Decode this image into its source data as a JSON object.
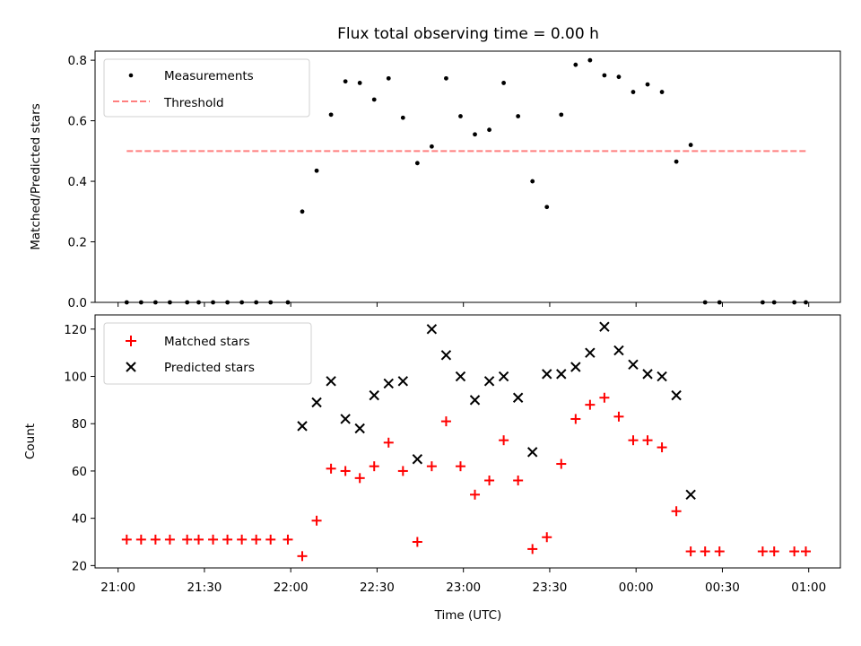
{
  "chart_data": [
    {
      "type": "scatter",
      "title": "Flux total observing time = 0.00 h",
      "ylabel": "Matched/Predicted stars",
      "xlim": [
        "20:52",
        "01:11"
      ],
      "ylim": [
        0,
        0.83
      ],
      "yticks": [
        "0.0",
        "0.2",
        "0.4",
        "0.6",
        "0.8"
      ],
      "legend_position": "upper-left",
      "grid": false,
      "series": [
        {
          "name": "Measurements",
          "color": "#000000",
          "marker": "dot",
          "points": [
            [
              "21:03",
              0.0
            ],
            [
              "21:08",
              0.0
            ],
            [
              "21:13",
              0.0
            ],
            [
              "21:18",
              0.0
            ],
            [
              "21:24",
              0.0
            ],
            [
              "21:28",
              0.0
            ],
            [
              "21:33",
              0.0
            ],
            [
              "21:38",
              0.0
            ],
            [
              "21:43",
              0.0
            ],
            [
              "21:48",
              0.0
            ],
            [
              "21:53",
              0.0
            ],
            [
              "21:59",
              0.0
            ],
            [
              "22:04",
              0.3
            ],
            [
              "22:09",
              0.435
            ],
            [
              "22:14",
              0.62
            ],
            [
              "22:19",
              0.73
            ],
            [
              "22:24",
              0.725
            ],
            [
              "22:29",
              0.67
            ],
            [
              "22:34",
              0.74
            ],
            [
              "22:39",
              0.61
            ],
            [
              "22:44",
              0.46
            ],
            [
              "22:49",
              0.515
            ],
            [
              "22:54",
              0.74
            ],
            [
              "22:59",
              0.615
            ],
            [
              "23:04",
              0.555
            ],
            [
              "23:09",
              0.57
            ],
            [
              "23:14",
              0.725
            ],
            [
              "23:19",
              0.615
            ],
            [
              "23:24",
              0.4
            ],
            [
              "23:29",
              0.315
            ],
            [
              "23:34",
              0.62
            ],
            [
              "23:39",
              0.785
            ],
            [
              "23:44",
              0.8
            ],
            [
              "23:49",
              0.75
            ],
            [
              "23:54",
              0.745
            ],
            [
              "23:59",
              0.695
            ],
            [
              "00:04",
              0.72
            ],
            [
              "00:09",
              0.695
            ],
            [
              "00:14",
              0.465
            ],
            [
              "00:19",
              0.52
            ],
            [
              "00:24",
              0.0
            ],
            [
              "00:29",
              0.0
            ],
            [
              "00:44",
              0.0
            ],
            [
              "00:48",
              0.0
            ],
            [
              "00:55",
              0.0
            ],
            [
              "00:59",
              0.0
            ]
          ]
        },
        {
          "name": "Threshold",
          "color": "#ff7f7f",
          "style": "dashed",
          "points": [
            [
              "21:03",
              0.5
            ],
            [
              "00:59",
              0.5
            ]
          ]
        }
      ]
    },
    {
      "type": "scatter",
      "xlabel": "Time (UTC)",
      "ylabel": "Count",
      "xlim": [
        "20:52",
        "01:11"
      ],
      "ylim": [
        19,
        126
      ],
      "yticks": [
        "20",
        "40",
        "60",
        "80",
        "100",
        "120"
      ],
      "xticks": [
        "21:00",
        "21:30",
        "22:00",
        "22:30",
        "23:00",
        "23:30",
        "00:00",
        "00:30",
        "01:00"
      ],
      "legend_position": "upper-left",
      "grid": false,
      "series": [
        {
          "name": "Matched stars",
          "color": "#ff0000",
          "marker": "plus",
          "points": [
            [
              "21:03",
              31
            ],
            [
              "21:08",
              31
            ],
            [
              "21:13",
              31
            ],
            [
              "21:18",
              31
            ],
            [
              "21:24",
              31
            ],
            [
              "21:28",
              31
            ],
            [
              "21:33",
              31
            ],
            [
              "21:38",
              31
            ],
            [
              "21:43",
              31
            ],
            [
              "21:48",
              31
            ],
            [
              "21:53",
              31
            ],
            [
              "21:59",
              31
            ],
            [
              "22:04",
              24
            ],
            [
              "22:09",
              39
            ],
            [
              "22:14",
              61
            ],
            [
              "22:19",
              60
            ],
            [
              "22:24",
              57
            ],
            [
              "22:29",
              62
            ],
            [
              "22:34",
              72
            ],
            [
              "22:39",
              60
            ],
            [
              "22:44",
              30
            ],
            [
              "22:49",
              62
            ],
            [
              "22:54",
              81
            ],
            [
              "22:59",
              62
            ],
            [
              "23:04",
              50
            ],
            [
              "23:09",
              56
            ],
            [
              "23:14",
              73
            ],
            [
              "23:19",
              56
            ],
            [
              "23:24",
              27
            ],
            [
              "23:29",
              32
            ],
            [
              "23:34",
              63
            ],
            [
              "23:39",
              82
            ],
            [
              "23:44",
              88
            ],
            [
              "23:49",
              91
            ],
            [
              "23:54",
              83
            ],
            [
              "23:59",
              73
            ],
            [
              "00:04",
              73
            ],
            [
              "00:09",
              70
            ],
            [
              "00:14",
              43
            ],
            [
              "00:19",
              26
            ],
            [
              "00:24",
              26
            ],
            [
              "00:29",
              26
            ],
            [
              "00:44",
              26
            ],
            [
              "00:48",
              26
            ],
            [
              "00:55",
              26
            ],
            [
              "00:59",
              26
            ]
          ]
        },
        {
          "name": "Predicted stars",
          "color": "#000000",
          "marker": "x",
          "points": [
            [
              "22:04",
              79
            ],
            [
              "22:09",
              89
            ],
            [
              "22:14",
              98
            ],
            [
              "22:19",
              82
            ],
            [
              "22:24",
              78
            ],
            [
              "22:29",
              92
            ],
            [
              "22:34",
              97
            ],
            [
              "22:39",
              98
            ],
            [
              "22:44",
              65
            ],
            [
              "22:49",
              120
            ],
            [
              "22:54",
              109
            ],
            [
              "22:59",
              100
            ],
            [
              "23:04",
              90
            ],
            [
              "23:09",
              98
            ],
            [
              "23:14",
              100
            ],
            [
              "23:19",
              91
            ],
            [
              "23:24",
              68
            ],
            [
              "23:29",
              101
            ],
            [
              "23:34",
              101
            ],
            [
              "23:39",
              104
            ],
            [
              "23:44",
              110
            ],
            [
              "23:49",
              121
            ],
            [
              "23:54",
              111
            ],
            [
              "23:59",
              105
            ],
            [
              "00:04",
              101
            ],
            [
              "00:09",
              100
            ],
            [
              "00:14",
              92
            ],
            [
              "00:19",
              50
            ]
          ]
        }
      ]
    }
  ]
}
